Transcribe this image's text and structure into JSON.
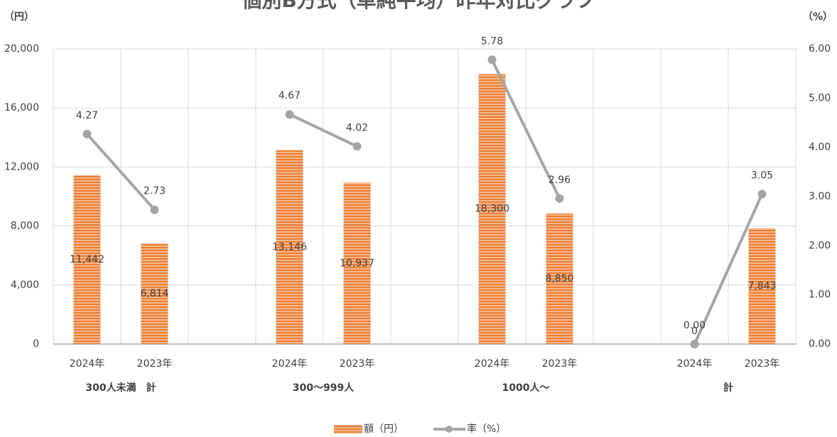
{
  "chart_data": {
    "type": "bar+line",
    "title": "個別B方式（単純平均）昨年対比グラフ",
    "y_unit": "（円）",
    "y2_unit": "（%）",
    "categories": [
      "2024年",
      "2023年",
      null,
      "2024年",
      "2023年",
      null,
      "2024年",
      "2023年",
      null,
      "2024年",
      "2023年"
    ],
    "groups": [
      "300人未満　計",
      "300～999人",
      "1000人～",
      "計"
    ],
    "series": [
      {
        "name": "額（円）",
        "type": "bar",
        "color": "#ed7d31",
        "values": [
          11442,
          6814,
          null,
          13146,
          10937,
          null,
          18300,
          8850,
          null,
          0,
          7843
        ],
        "value_labels": [
          "11,442",
          "6,814",
          null,
          "13,146",
          "10,937",
          null,
          "18,300",
          "8,850",
          null,
          "0",
          "7,843"
        ]
      },
      {
        "name": "率（%）",
        "type": "line",
        "axis": "y2",
        "color": "#a5a5a5",
        "values": [
          4.27,
          2.73,
          null,
          4.67,
          4.02,
          null,
          5.78,
          2.96,
          null,
          0,
          3.05
        ],
        "value_labels": [
          "4.27",
          "2.73",
          null,
          "4.67",
          "4.02",
          null,
          "5.78",
          "2.96",
          null,
          "0.00",
          "3.05"
        ]
      }
    ],
    "ylim": [
      0,
      20000
    ],
    "yticks": [
      {
        "value": 0,
        "label": "0"
      },
      {
        "value": 4000,
        "label": "4,000"
      },
      {
        "value": 8000,
        "label": "8,000"
      },
      {
        "value": 12000,
        "label": "12,000"
      },
      {
        "value": 16000,
        "label": "16,000"
      },
      {
        "value": 20000,
        "label": "20,000"
      }
    ],
    "y2lim": [
      0,
      6
    ],
    "y2ticks": [
      {
        "value": 0,
        "label": "0.00"
      },
      {
        "value": 1,
        "label": "1.00"
      },
      {
        "value": 2,
        "label": "2.00"
      },
      {
        "value": 3,
        "label": "3.00"
      },
      {
        "value": 4,
        "label": "4.00"
      },
      {
        "value": 5,
        "label": "5.00"
      },
      {
        "value": 6,
        "label": "6.00"
      }
    ],
    "grid": true
  }
}
